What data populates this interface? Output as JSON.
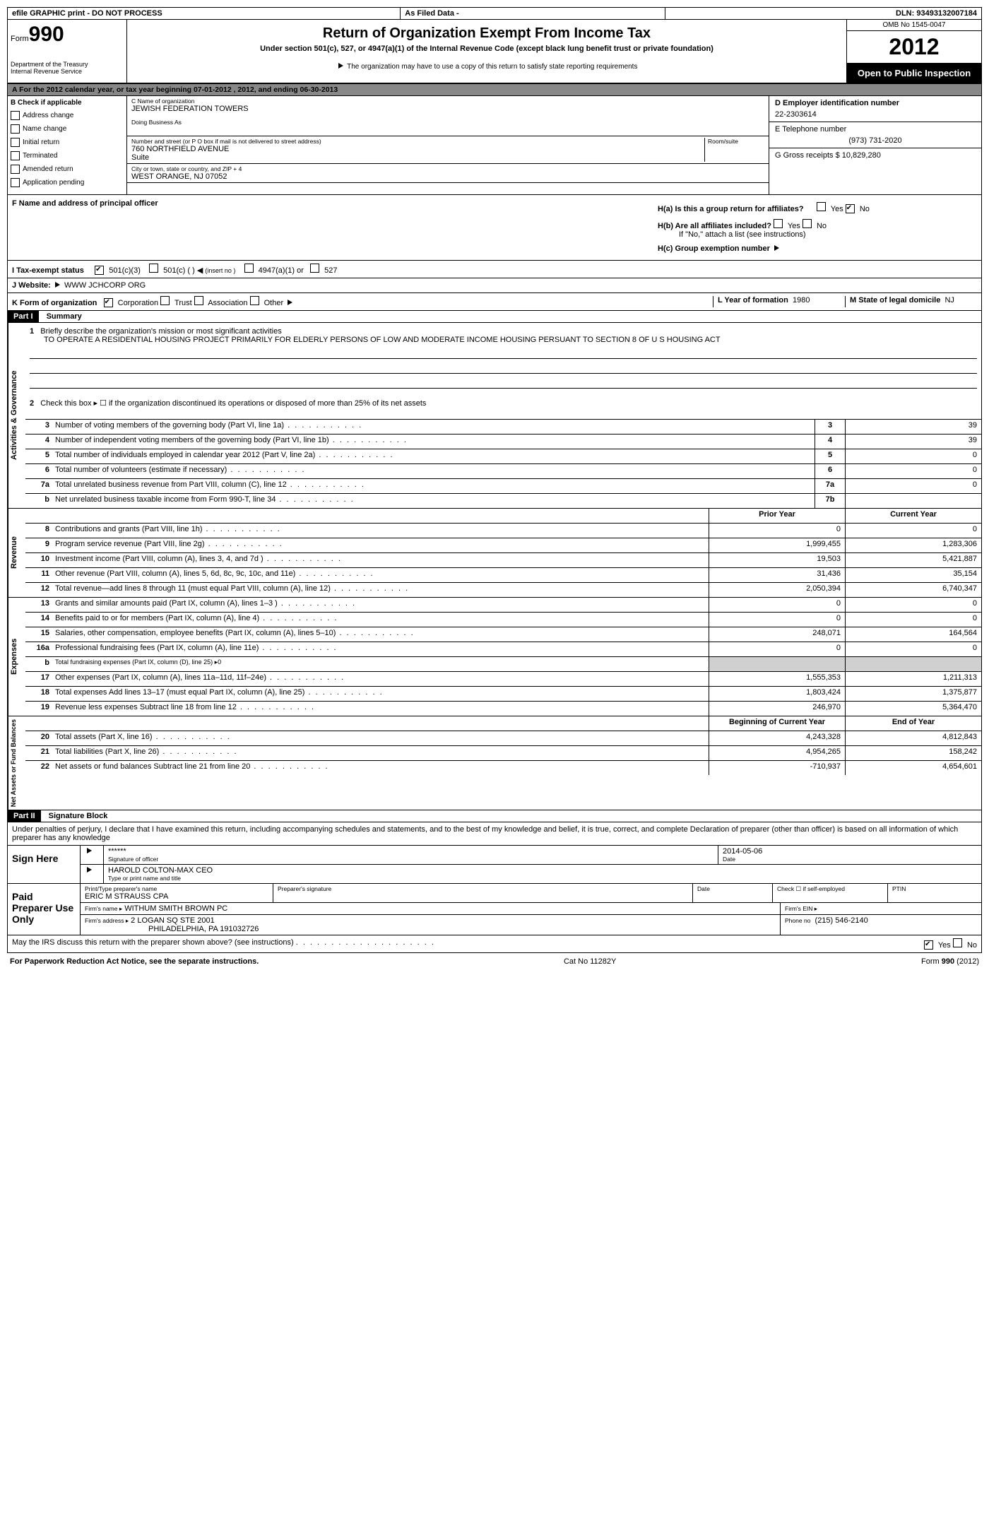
{
  "banner": {
    "efile": "efile GRAPHIC print - DO NOT PROCESS",
    "asfiled": "As Filed Data -",
    "dln_label": "DLN:",
    "dln": "93493132007184"
  },
  "header": {
    "form_label": "Form",
    "form_no": "990",
    "dept": "Department of the Treasury",
    "irs": "Internal Revenue Service",
    "title": "Return of Organization Exempt From Income Tax",
    "subtitle": "Under section 501(c), 527, or 4947(a)(1) of the Internal Revenue Code (except black lung benefit trust or private foundation)",
    "note": "The organization may have to use a copy of this return to satisfy state reporting requirements",
    "omb": "OMB No 1545-0047",
    "year": "2012",
    "open": "Open to Public Inspection"
  },
  "section_a": {
    "tax_year": "A  For the 2012 calendar year, or tax year beginning 07-01-2012     , 2012, and ending 06-30-2013",
    "b_label": "B  Check if applicable",
    "b_items": [
      "Address change",
      "Name change",
      "Initial return",
      "Terminated",
      "Amended return",
      "Application pending"
    ],
    "c_name_label": "C Name of organization",
    "c_name": "JEWISH FEDERATION TOWERS",
    "dba_label": "Doing Business As",
    "street_label": "Number and street (or P O  box if mail is not delivered to street address)",
    "room_label": "Room/suite",
    "street": "760 NORTHFIELD AVENUE",
    "suite": "Suite",
    "city_label": "City or town, state or country, and ZIP + 4",
    "city": "WEST ORANGE, NJ  07052",
    "d_ein_label": "D Employer identification number",
    "d_ein": "22-2303614",
    "e_phone_label": "E Telephone number",
    "e_phone": "(973) 731-2020",
    "g_label": "G Gross receipts $",
    "g_val": "10,829,280",
    "f_label": "F   Name and address of principal officer",
    "ha_label": "H(a)  Is this a group return for affiliates?",
    "hb_label": "H(b)  Are all affiliates included?",
    "hb_note": "If \"No,\" attach a list  (see instructions)",
    "hc_label": "H(c)   Group exemption number",
    "yes": "Yes",
    "no": "No"
  },
  "row_i": {
    "label": "I   Tax-exempt status",
    "opt1": "501(c)(3)",
    "opt2": "501(c) (   )",
    "opt2_note": "(insert no )",
    "opt3": "4947(a)(1) or",
    "opt4": "527"
  },
  "row_j": {
    "label": "J   Website:",
    "val": "WWW JCHCORP ORG"
  },
  "row_k": {
    "label": "K Form of organization",
    "opts": [
      "Corporation",
      "Trust",
      "Association",
      "Other"
    ],
    "l_label": "L Year of formation",
    "l_val": "1980",
    "m_label": "M State of legal domicile",
    "m_val": "NJ"
  },
  "part1": {
    "header": "Part I",
    "title": "Summary",
    "vert_ag": "Activities & Governance",
    "vert_rev": "Revenue",
    "vert_exp": "Expenses",
    "vert_net": "Net Assets or Fund Balances",
    "line1_label": "Briefly describe the organization's mission or most significant activities",
    "line1_text": "TO OPERATE A RESIDENTIAL HOUSING PROJECT PRIMARILY FOR ELDERLY PERSONS OF LOW AND MODERATE INCOME HOUSING PERSUANT TO SECTION 8 OF U S  HOUSING ACT",
    "line2": "Check this box ▸ ☐ if the organization discontinued its operations or disposed of more than 25% of its net assets",
    "rows_ag": [
      {
        "n": "3",
        "d": "Number of voting members of the governing body (Part VI, line 1a)",
        "c": "3",
        "v": "39"
      },
      {
        "n": "4",
        "d": "Number of independent voting members of the governing body (Part VI, line 1b)",
        "c": "4",
        "v": "39"
      },
      {
        "n": "5",
        "d": "Total number of individuals employed in calendar year 2012 (Part V, line 2a)",
        "c": "5",
        "v": "0"
      },
      {
        "n": "6",
        "d": "Total number of volunteers (estimate if necessary)",
        "c": "6",
        "v": "0"
      },
      {
        "n": "7a",
        "d": "Total unrelated business revenue from Part VIII, column (C), line 12",
        "c": "7a",
        "v": "0"
      },
      {
        "n": "b",
        "d": "Net unrelated business taxable income from Form 990-T, line 34",
        "c": "7b",
        "v": ""
      }
    ],
    "col_prior": "Prior Year",
    "col_current": "Current Year",
    "rows_rev": [
      {
        "n": "8",
        "d": "Contributions and grants (Part VIII, line 1h)",
        "p": "0",
        "c": "0"
      },
      {
        "n": "9",
        "d": "Program service revenue (Part VIII, line 2g)",
        "p": "1,999,455",
        "c": "1,283,306"
      },
      {
        "n": "10",
        "d": "Investment income (Part VIII, column (A), lines 3, 4, and 7d )",
        "p": "19,503",
        "c": "5,421,887"
      },
      {
        "n": "11",
        "d": "Other revenue (Part VIII, column (A), lines 5, 6d, 8c, 9c, 10c, and 11e)",
        "p": "31,436",
        "c": "35,154"
      },
      {
        "n": "12",
        "d": "Total revenue—add lines 8 through 11 (must equal Part VIII, column (A), line 12)",
        "p": "2,050,394",
        "c": "6,740,347"
      }
    ],
    "rows_exp": [
      {
        "n": "13",
        "d": "Grants and similar amounts paid (Part IX, column (A), lines 1–3 )",
        "p": "0",
        "c": "0"
      },
      {
        "n": "14",
        "d": "Benefits paid to or for members (Part IX, column (A), line 4)",
        "p": "0",
        "c": "0"
      },
      {
        "n": "15",
        "d": "Salaries, other compensation, employee benefits (Part IX, column (A), lines 5–10)",
        "p": "248,071",
        "c": "164,564"
      },
      {
        "n": "16a",
        "d": "Professional fundraising fees (Part IX, column (A), line 11e)",
        "p": "0",
        "c": "0"
      },
      {
        "n": "b",
        "d": "Total fundraising expenses (Part IX, column (D), line 25)  ▸0",
        "p": "",
        "c": ""
      },
      {
        "n": "17",
        "d": "Other expenses (Part IX, column (A), lines 11a–11d, 11f–24e)",
        "p": "1,555,353",
        "c": "1,211,313"
      },
      {
        "n": "18",
        "d": "Total expenses  Add lines 13–17 (must equal Part IX, column (A), line 25)",
        "p": "1,803,424",
        "c": "1,375,877"
      },
      {
        "n": "19",
        "d": "Revenue less expenses  Subtract line 18 from line 12",
        "p": "246,970",
        "c": "5,364,470"
      }
    ],
    "col_begin": "Beginning of Current Year",
    "col_end": "End of Year",
    "rows_net": [
      {
        "n": "20",
        "d": "Total assets (Part X, line 16)",
        "p": "4,243,328",
        "c": "4,812,843"
      },
      {
        "n": "21",
        "d": "Total liabilities (Part X, line 26)",
        "p": "4,954,265",
        "c": "158,242"
      },
      {
        "n": "22",
        "d": "Net assets or fund balances  Subtract line 21 from line 20",
        "p": "-710,937",
        "c": "4,654,601"
      }
    ]
  },
  "part2": {
    "header": "Part II",
    "title": "Signature Block",
    "perjury": "Under penalties of perjury, I declare that I have examined this return, including accompanying schedules and statements, and to the best of my knowledge and belief, it is true, correct, and complete  Declaration of preparer (other than officer) is based on all information of which preparer has any knowledge",
    "sign_here": "Sign Here",
    "sig_stars": "******",
    "sig_officer_label": "Signature of officer",
    "date_label": "Date",
    "sig_date": "2014-05-06",
    "sig_name": "HAROLD COLTON-MAX CEO",
    "sig_name_label": "Type or print name and title",
    "paid_prep": "Paid Preparer Use Only",
    "prep_name_label": "Print/Type preparer's name",
    "prep_name": "ERIC M STRAUSS CPA",
    "prep_sig_label": "Preparer's signature",
    "self_emp": "Check ☐ if self-employed",
    "ptin": "PTIN",
    "firm_name_label": "Firm's name   ▸",
    "firm_name": "WITHUM SMITH BROWN PC",
    "firm_ein_label": "Firm's EIN ▸",
    "firm_addr_label": "Firm's address ▸",
    "firm_addr": "2 LOGAN SQ STE 2001",
    "firm_city": "PHILADELPHIA, PA 191032726",
    "phone_label": "Phone no",
    "phone": "(215) 546-2140",
    "discuss": "May the IRS discuss this return with the preparer shown above? (see instructions)"
  },
  "footer": {
    "paperwork": "For Paperwork Reduction Act Notice, see the separate instructions.",
    "cat": "Cat No  11282Y",
    "form": "Form 990 (2012)"
  }
}
